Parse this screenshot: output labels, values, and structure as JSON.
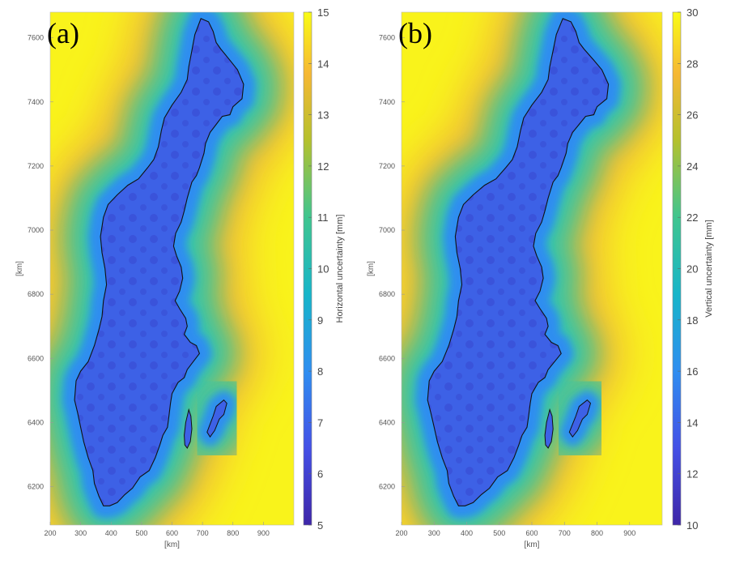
{
  "colors": {
    "ocean_far": "#f9f31b",
    "ocean_mid": "#f1b43a",
    "coast_band": "#2ec4b4",
    "land": "#3d61e6",
    "land_dark": "#3446d2",
    "outline": "#111111"
  },
  "chart_data": [
    {
      "type": "heatmap",
      "panel_label": "(a)",
      "xlabel": "[km]",
      "ylabel": "[km]",
      "x_ticks": [
        "200",
        "300",
        "400",
        "500",
        "600",
        "700",
        "800",
        "900"
      ],
      "y_ticks": [
        "6200",
        "6400",
        "6600",
        "6800",
        "7000",
        "7200",
        "7400",
        "7600"
      ],
      "xlim": [
        200,
        1000
      ],
      "ylim": [
        6080,
        7680
      ],
      "colorbar": {
        "label": "Horizontal uncertainty [mm]",
        "range": [
          5,
          15
        ],
        "ticks": [
          "5",
          "6",
          "7",
          "8",
          "9",
          "10",
          "11",
          "12",
          "13",
          "14",
          "15"
        ]
      }
    },
    {
      "type": "heatmap",
      "panel_label": "(b)",
      "xlabel": "[km]",
      "ylabel": "[km]",
      "x_ticks": [
        "200",
        "300",
        "400",
        "500",
        "600",
        "700",
        "800",
        "900"
      ],
      "y_ticks": [
        "6200",
        "6400",
        "6600",
        "6800",
        "7000",
        "7200",
        "7400",
        "7600"
      ],
      "xlim": [
        200,
        1000
      ],
      "ylim": [
        6080,
        7680
      ],
      "colorbar": {
        "label": "Vertical uncertainty [mm]",
        "range": [
          10,
          30
        ],
        "ticks": [
          "10",
          "12",
          "14",
          "16",
          "18",
          "20",
          "22",
          "24",
          "26",
          "28",
          "30"
        ]
      }
    }
  ]
}
